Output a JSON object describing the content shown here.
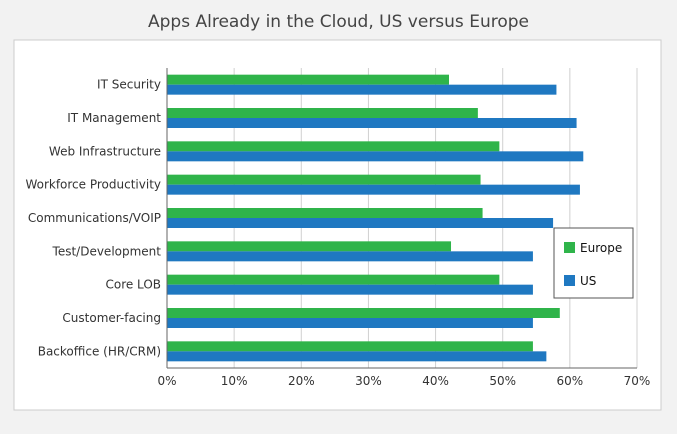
{
  "chart_data": {
    "type": "bar",
    "orientation": "horizontal",
    "title": "Apps Already in the Cloud, US versus Europe",
    "categories": [
      "IT Security",
      "IT Management",
      "Web Infrastructure",
      "Workforce Productivity",
      "Communications/VOIP",
      "Test/Development",
      "Core LOB",
      "Customer-facing",
      "Backoffice (HR/CRM)"
    ],
    "series": [
      {
        "name": "Europe",
        "color": "#2fb44a",
        "values": [
          42,
          46.3,
          49.5,
          46.7,
          47,
          42.3,
          49.5,
          58.5,
          54.5
        ]
      },
      {
        "name": "US",
        "color": "#1f78c1",
        "values": [
          58,
          61,
          62,
          61.5,
          57.5,
          54.5,
          54.5,
          54.5,
          56.5
        ]
      }
    ],
    "xlim": [
      0,
      70
    ],
    "xticks": [
      "0%",
      "10%",
      "20%",
      "30%",
      "40%",
      "50%",
      "60%",
      "70%"
    ],
    "grid": true,
    "legend_position": "right"
  }
}
